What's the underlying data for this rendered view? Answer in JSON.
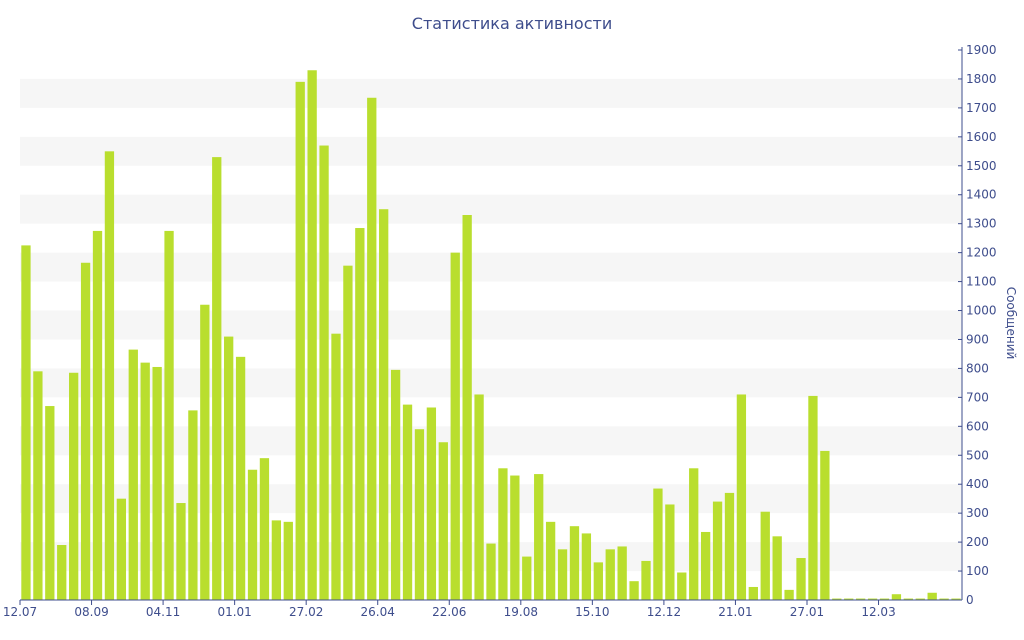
{
  "chart_data": {
    "type": "bar",
    "title": "Статистика активности",
    "ylabel": "Сообщений",
    "xlabel": "",
    "ylim": [
      0,
      1900
    ],
    "y_ticks": [
      0,
      100,
      200,
      300,
      400,
      500,
      600,
      700,
      800,
      900,
      1000,
      1100,
      1200,
      1300,
      1400,
      1500,
      1600,
      1700,
      1800,
      1900
    ],
    "y_axis_side": "right",
    "grid": "alternating horizontal bands",
    "x_tick_labels": [
      "12.07",
      "08.09",
      "04.11",
      "01.01",
      "27.02",
      "26.04",
      "22.06",
      "19.08",
      "15.10",
      "12.12",
      "21.01",
      "27.01",
      "12.03"
    ],
    "bar_color": "#b9de2e",
    "values": [
      1225,
      790,
      670,
      190,
      785,
      1165,
      1275,
      1550,
      350,
      865,
      820,
      805,
      1275,
      335,
      655,
      1020,
      1530,
      910,
      840,
      450,
      490,
      275,
      270,
      1790,
      1830,
      1570,
      920,
      1155,
      1285,
      1735,
      1350,
      795,
      675,
      590,
      665,
      545,
      1200,
      1330,
      710,
      195,
      455,
      430,
      150,
      435,
      270,
      175,
      255,
      230,
      130,
      175,
      185,
      65,
      135,
      385,
      330,
      95,
      455,
      235,
      340,
      370,
      710,
      45,
      305,
      220,
      35,
      145,
      705,
      515,
      5,
      5,
      5,
      5,
      5,
      20,
      5,
      5,
      25,
      5,
      5
    ]
  }
}
